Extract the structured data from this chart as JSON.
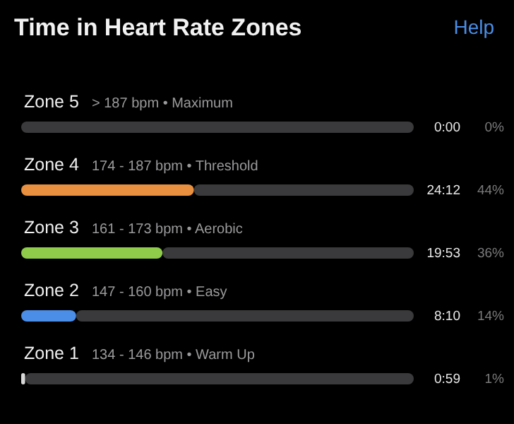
{
  "chart_data": {
    "type": "bar",
    "orientation": "horizontal",
    "stacked": true,
    "title": "Time in Heart Rate Zones",
    "categories": [
      "Zone 5",
      "Zone 4",
      "Zone 3",
      "Zone 2",
      "Zone 1"
    ],
    "series": [
      {
        "colors": [
          null,
          "#e8903f",
          "#8fcc4a",
          "#4a8ee8",
          "#d8d8d8"
        ],
        "values": [
          0,
          44,
          36,
          14,
          1
        ],
        "value_labels": [
          "0%",
          "44%",
          "36%",
          "14%",
          "1%"
        ]
      },
      {
        "color": "#3a3a3c",
        "values": [
          100,
          56,
          64,
          86,
          99
        ]
      }
    ],
    "xlim": [
      0,
      100
    ],
    "annotations": [
      "Help",
      "> 187 bpm • Maximum",
      "174 - 187 bpm • Threshold",
      "161 - 173 bpm • Aerobic",
      "147 - 160 bpm • Easy",
      "134 - 146 bpm • Warm Up",
      "0:00",
      "24:12",
      "19:53",
      "8:10",
      "0:59"
    ]
  }
}
